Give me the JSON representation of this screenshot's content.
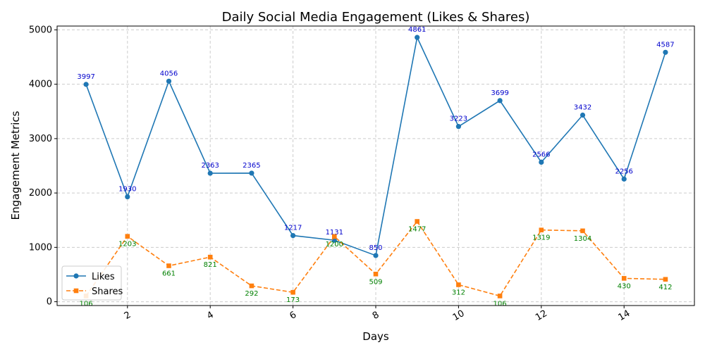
{
  "chart_data": {
    "type": "line",
    "title": "Daily Social Media Engagement (Likes & Shares)",
    "xlabel": "Days",
    "ylabel": "Engagement Metrics",
    "x": [
      1,
      2,
      3,
      4,
      5,
      6,
      7,
      8,
      9,
      10,
      11,
      12,
      13,
      14,
      15
    ],
    "xticks": [
      2,
      4,
      6,
      8,
      10,
      12,
      14
    ],
    "xlim": [
      0.3,
      15.7
    ],
    "yticks": [
      0,
      1000,
      2000,
      3000,
      4000,
      5000
    ],
    "ylim": [
      -70,
      5070
    ],
    "grid": true,
    "legend_position": "lower-left",
    "series": [
      {
        "name": "Likes",
        "color": "#1f77b4",
        "label_color": "#0000cc",
        "marker": "circle",
        "line_style": "solid",
        "values": [
          3997,
          1930,
          4056,
          2363,
          2365,
          1217,
          1131,
          850,
          4861,
          3223,
          3699,
          2566,
          3432,
          2256,
          4587
        ]
      },
      {
        "name": "Shares",
        "color": "#ff7f0e",
        "label_color": "#008000",
        "marker": "square",
        "line_style": "dashed",
        "values": [
          106,
          1203,
          661,
          821,
          292,
          173,
          1200,
          509,
          1477,
          312,
          106,
          1319,
          1304,
          430,
          412
        ]
      }
    ]
  }
}
